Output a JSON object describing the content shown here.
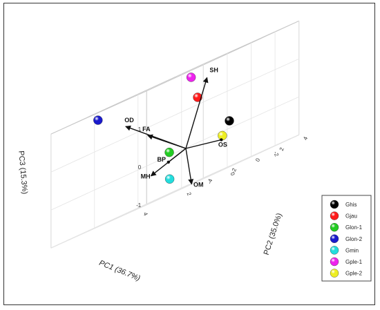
{
  "chart_data": {
    "type": "scatter",
    "projection": "3d",
    "axes": {
      "x": {
        "label": "PC1 (36.7%)",
        "ticks": [
          {
            "v": 4,
            "t": "4"
          },
          {
            "v": 2,
            "t": "2"
          },
          {
            "v": 0,
            "t": "0"
          },
          {
            "v": -2,
            "t": "-2"
          }
        ],
        "range": [
          -3,
          4
        ]
      },
      "y": {
        "label": "PC2 (35.0%)",
        "ticks": [
          {
            "v": -4,
            "t": "-4"
          },
          {
            "v": -2,
            "t": "-2"
          },
          {
            "v": 0,
            "t": "0"
          },
          {
            "v": 2,
            "t": "2"
          },
          {
            "v": 4,
            "t": "4"
          }
        ],
        "range": [
          -4,
          4
        ]
      },
      "z": {
        "label": "PC3 (15.3%)",
        "ticks": [
          {
            "v": 1,
            "t": "1"
          },
          {
            "v": 0,
            "t": "0"
          },
          {
            "v": -1,
            "t": "-1"
          }
        ],
        "range": [
          -1,
          2
        ]
      }
    },
    "grid": true,
    "legend": "right",
    "series": [
      {
        "name": "Ghis",
        "color": "#000000",
        "x": -2.0,
        "y": 0.0,
        "z": 0.2
      },
      {
        "name": "Gjau",
        "color": "#ff1a1a",
        "x": -1.2,
        "y": -1.2,
        "z": 1.2
      },
      {
        "name": "Glon-1",
        "color": "#22cc22",
        "x": 1.2,
        "y": 0.8,
        "z": 0.1
      },
      {
        "name": "Glon-2",
        "color": "#1a1acc",
        "x": 2.5,
        "y": -2.8,
        "z": 1.8
      },
      {
        "name": "Gmin",
        "color": "#22dddd",
        "x": 2.5,
        "y": 3.2,
        "z": -0.6
      },
      {
        "name": "Gple-1",
        "color": "#ee22ee",
        "x": -2.0,
        "y": -3.2,
        "z": 1.8
      },
      {
        "name": "Gple-2",
        "color": "#eeee22",
        "x": -0.8,
        "y": 1.6,
        "z": -0.1
      }
    ],
    "loadings": [
      {
        "label": "OD",
        "x": 1.5,
        "y": -2.3,
        "z": 1.3
      },
      {
        "label": "SH",
        "x": -2.4,
        "y": -2.6,
        "z": 1.6
      },
      {
        "label": "FA",
        "x": 1.2,
        "y": -1.0,
        "z": 0.8
      },
      {
        "label": "OS",
        "x": -1.3,
        "y": 0.6,
        "z": -0.2
      },
      {
        "label": "MH",
        "x": 1.6,
        "y": 0.0,
        "z": -0.3
      },
      {
        "label": "BP",
        "x": 0.8,
        "y": 0.0,
        "z": -0.15
      },
      {
        "label": "OM",
        "x": 1.0,
        "y": 2.3,
        "z": -1.0
      }
    ]
  }
}
